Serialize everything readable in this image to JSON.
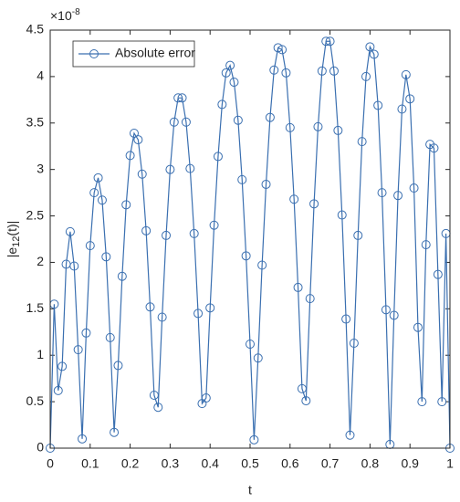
{
  "chart_data": {
    "type": "line",
    "xlabel": "t",
    "ylabel": {
      "before": "|e",
      "sub": "12",
      "after": "(t)|"
    },
    "y_multiplier": {
      "base": "×10",
      "exponent": "-8"
    },
    "x": [
      0,
      0.01,
      0.02,
      0.03,
      0.04,
      0.05,
      0.06,
      0.07,
      0.08,
      0.09,
      0.1,
      0.11,
      0.12,
      0.13,
      0.14,
      0.15,
      0.16,
      0.17,
      0.18,
      0.19,
      0.2,
      0.21,
      0.22,
      0.23,
      0.24,
      0.25,
      0.26,
      0.27,
      0.28,
      0.29,
      0.3,
      0.31,
      0.32,
      0.33,
      0.34,
      0.35,
      0.36,
      0.37,
      0.38,
      0.39,
      0.4,
      0.41,
      0.42,
      0.43,
      0.44,
      0.45,
      0.46,
      0.47,
      0.48,
      0.49,
      0.5,
      0.51,
      0.52,
      0.53,
      0.54,
      0.55,
      0.56,
      0.57,
      0.58,
      0.59,
      0.6,
      0.61,
      0.62,
      0.63,
      0.64,
      0.65,
      0.66,
      0.67,
      0.68,
      0.69,
      0.7,
      0.71,
      0.72,
      0.73,
      0.74,
      0.75,
      0.76,
      0.77,
      0.78,
      0.79,
      0.8,
      0.81,
      0.82,
      0.83,
      0.84,
      0.85,
      0.86,
      0.87,
      0.88,
      0.89,
      0.9,
      0.91,
      0.92,
      0.93,
      0.94,
      0.95,
      0.96,
      0.97,
      0.98,
      0.99,
      1
    ],
    "series": [
      {
        "name": "Absolute error",
        "color": "#3a6fb0",
        "marker": "circle",
        "values": [
          0,
          1.55,
          0.62,
          0.88,
          1.98,
          2.33,
          1.96,
          1.06,
          0.1,
          1.24,
          2.18,
          2.75,
          2.91,
          2.67,
          2.06,
          1.19,
          0.17,
          0.89,
          1.85,
          2.62,
          3.15,
          3.39,
          3.32,
          2.95,
          2.34,
          1.52,
          0.57,
          0.44,
          1.41,
          2.29,
          3.0,
          3.51,
          3.77,
          3.77,
          3.51,
          3.01,
          2.31,
          1.45,
          0.48,
          0.54,
          1.51,
          2.4,
          3.14,
          3.7,
          4.04,
          4.12,
          3.94,
          3.53,
          2.89,
          2.07,
          1.12,
          0.09,
          0.97,
          1.97,
          2.84,
          3.56,
          4.07,
          4.31,
          4.29,
          4.04,
          3.45,
          2.68,
          1.73,
          0.64,
          0.51,
          1.61,
          2.63,
          3.46,
          4.06,
          4.38,
          4.38,
          4.06,
          3.42,
          2.51,
          1.39,
          0.14,
          1.13,
          2.29,
          3.3,
          4.0,
          4.32,
          4.24,
          3.69,
          2.75,
          1.49,
          0.04,
          1.43,
          2.72,
          3.65,
          4.02,
          3.76,
          2.8,
          1.3,
          0.5,
          2.19,
          3.27,
          3.23,
          1.87,
          0.5,
          2.31,
          0
        ]
      }
    ],
    "xlim": [
      0,
      1
    ],
    "ylim": [
      0,
      4.5
    ],
    "xticks": [
      0,
      0.1,
      0.2,
      0.3,
      0.4,
      0.5,
      0.6,
      0.7,
      0.8,
      0.9,
      1
    ],
    "yticks": [
      0,
      0.5,
      1,
      1.5,
      2,
      2.5,
      3,
      3.5,
      4,
      4.5
    ],
    "grid": false,
    "legend": "northwest"
  }
}
